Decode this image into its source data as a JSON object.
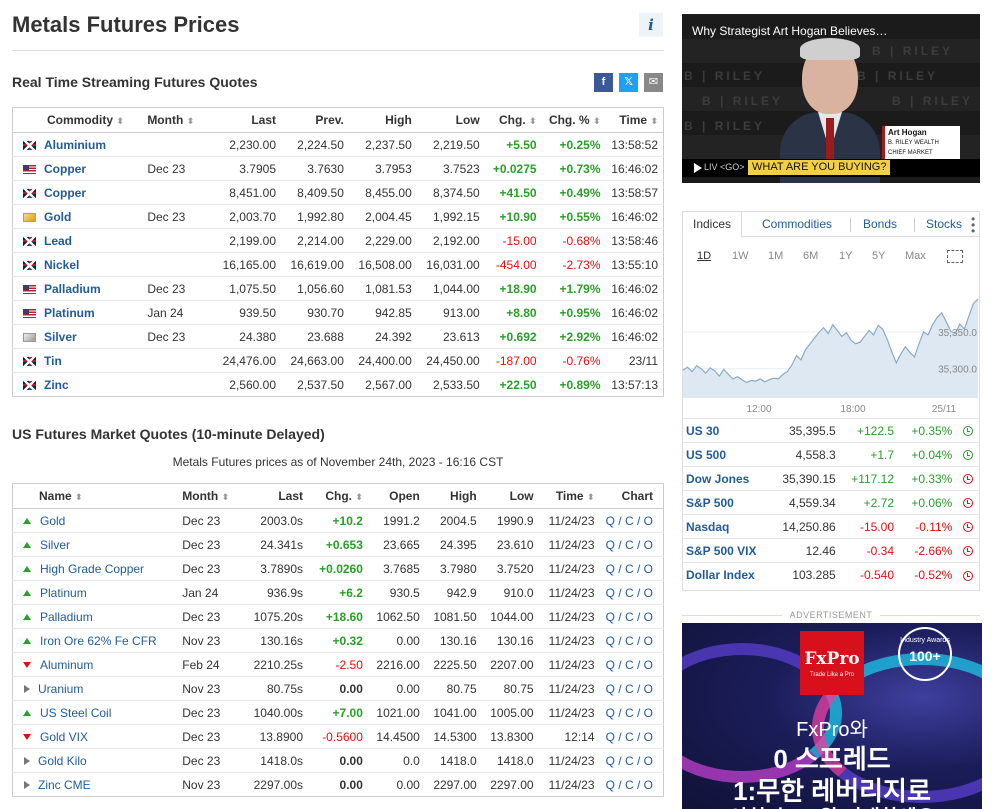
{
  "page": {
    "title": "Metals Futures Prices",
    "info_icon": "info-icon"
  },
  "realtime": {
    "title": "Real Time Streaming Futures Quotes",
    "share": [
      {
        "icon": "facebook-icon",
        "glyph": "f",
        "color": "#3b5998"
      },
      {
        "icon": "twitter-icon",
        "glyph": "𝕏",
        "color": "#1da1f2"
      },
      {
        "icon": "email-icon",
        "glyph": "✉",
        "color": "#888888"
      }
    ],
    "headers": {
      "commodity": "Commodity",
      "month": "Month",
      "last": "Last",
      "prev": "Prev.",
      "high": "High",
      "low": "Low",
      "chg": "Chg.",
      "chg_pct": "Chg. %",
      "time": "Time"
    },
    "sort_glyph": "⬍",
    "rows": [
      {
        "flag": "uk",
        "name": "Aluminium",
        "month": "",
        "last": "2,230.00",
        "prev": "2,224.50",
        "high": "2,237.50",
        "low": "2,219.50",
        "chg": "+5.50",
        "chg_pct": "+0.25%",
        "time": "13:58:52",
        "dir": "pos"
      },
      {
        "flag": "us",
        "name": "Copper",
        "month": "Dec 23",
        "last": "3.7905",
        "prev": "3.7630",
        "high": "3.7953",
        "low": "3.7523",
        "chg": "+0.0275",
        "chg_pct": "+0.73%",
        "time": "16:46:02",
        "dir": "pos"
      },
      {
        "flag": "uk",
        "name": "Copper",
        "month": "",
        "last": "8,451.00",
        "prev": "8,409.50",
        "high": "8,455.00",
        "low": "8,374.50",
        "chg": "+41.50",
        "chg_pct": "+0.49%",
        "time": "13:58:57",
        "dir": "pos"
      },
      {
        "flag": "gold",
        "name": "Gold",
        "month": "Dec 23",
        "last": "2,003.70",
        "prev": "1,992.80",
        "high": "2,004.45",
        "low": "1,992.15",
        "chg": "+10.90",
        "chg_pct": "+0.55%",
        "time": "16:46:02",
        "dir": "pos"
      },
      {
        "flag": "uk",
        "name": "Lead",
        "month": "",
        "last": "2,199.00",
        "prev": "2,214.00",
        "high": "2,229.00",
        "low": "2,192.00",
        "chg": "-15.00",
        "chg_pct": "-0.68%",
        "time": "13:58:46",
        "dir": "neg"
      },
      {
        "flag": "uk",
        "name": "Nickel",
        "month": "",
        "last": "16,165.00",
        "prev": "16,619.00",
        "high": "16,508.00",
        "low": "16,031.00",
        "chg": "-454.00",
        "chg_pct": "-2.73%",
        "time": "13:55:10",
        "dir": "neg"
      },
      {
        "flag": "us",
        "name": "Palladium",
        "month": "Dec 23",
        "last": "1,075.50",
        "prev": "1,056.60",
        "high": "1,081.53",
        "low": "1,044.00",
        "chg": "+18.90",
        "chg_pct": "+1.79%",
        "time": "16:46:02",
        "dir": "pos"
      },
      {
        "flag": "us",
        "name": "Platinum",
        "month": "Jan 24",
        "last": "939.50",
        "prev": "930.70",
        "high": "942.85",
        "low": "913.00",
        "chg": "+8.80",
        "chg_pct": "+0.95%",
        "time": "16:46:02",
        "dir": "pos"
      },
      {
        "flag": "silver",
        "name": "Silver",
        "month": "Dec 23",
        "last": "24.380",
        "prev": "23.688",
        "high": "24.392",
        "low": "23.613",
        "chg": "+0.692",
        "chg_pct": "+2.92%",
        "time": "16:46:02",
        "dir": "pos"
      },
      {
        "flag": "uk",
        "name": "Tin",
        "month": "",
        "last": "24,476.00",
        "prev": "24,663.00",
        "high": "24,400.00",
        "low": "24,450.00",
        "chg": "-187.00",
        "chg_pct": "-0.76%",
        "time": "23/11",
        "dir": "neg"
      },
      {
        "flag": "uk",
        "name": "Zinc",
        "month": "",
        "last": "2,560.00",
        "prev": "2,537.50",
        "high": "2,567.00",
        "low": "2,533.50",
        "chg": "+22.50",
        "chg_pct": "+0.89%",
        "time": "13:57:13",
        "dir": "pos"
      }
    ]
  },
  "delayed": {
    "title": "US Futures Market Quotes (10-minute Delayed)",
    "subtitle": "Metals Futures prices as of November 24th, 2023 - 16:16 CST",
    "headers": {
      "name": "Name",
      "month": "Month",
      "last": "Last",
      "chg": "Chg.",
      "open": "Open",
      "high": "High",
      "low": "Low",
      "time": "Time",
      "chart": "Chart"
    },
    "chart_links": [
      "Q",
      "C",
      "O"
    ],
    "rows": [
      {
        "dir": "up",
        "name": "Gold",
        "month": "Dec 23",
        "last": "2003.0s",
        "chg": "+10.2",
        "open": "1991.2",
        "high": "2004.5",
        "low": "1990.9",
        "time": "11/24/23",
        "cls": "pos"
      },
      {
        "dir": "up",
        "name": "Silver",
        "month": "Dec 23",
        "last": "24.341s",
        "chg": "+0.653",
        "open": "23.665",
        "high": "24.395",
        "low": "23.610",
        "time": "11/24/23",
        "cls": "pos"
      },
      {
        "dir": "up",
        "name": "High Grade Copper",
        "month": "Dec 23",
        "last": "3.7890s",
        "chg": "+0.0260",
        "open": "3.7685",
        "high": "3.7980",
        "low": "3.7520",
        "time": "11/24/23",
        "cls": "pos"
      },
      {
        "dir": "up",
        "name": "Platinum",
        "month": "Jan 24",
        "last": "936.9s",
        "chg": "+6.2",
        "open": "930.5",
        "high": "942.9",
        "low": "910.0",
        "time": "11/24/23",
        "cls": "pos"
      },
      {
        "dir": "up",
        "name": "Palladium",
        "month": "Dec 23",
        "last": "1075.20s",
        "chg": "+18.60",
        "open": "1062.50",
        "high": "1081.50",
        "low": "1044.00",
        "time": "11/24/23",
        "cls": "pos"
      },
      {
        "dir": "up",
        "name": "Iron Ore 62% Fe CFR",
        "month": "Nov 23",
        "last": "130.16s",
        "chg": "+0.32",
        "open": "0.00",
        "high": "130.16",
        "low": "130.16",
        "time": "11/24/23",
        "cls": "pos"
      },
      {
        "dir": "down",
        "name": "Aluminum",
        "month": "Feb 24",
        "last": "2210.25s",
        "chg": "-2.50",
        "open": "2216.00",
        "high": "2225.50",
        "low": "2207.00",
        "time": "11/24/23",
        "cls": "neg"
      },
      {
        "dir": "flat",
        "name": "Uranium",
        "month": "Nov 23",
        "last": "80.75s",
        "chg": "0.00",
        "open": "0.00",
        "high": "80.75",
        "low": "80.75",
        "time": "11/24/23",
        "cls": "neu"
      },
      {
        "dir": "up",
        "name": "US Steel Coil",
        "month": "Dec 23",
        "last": "1040.00s",
        "chg": "+7.00",
        "open": "1021.00",
        "high": "1041.00",
        "low": "1005.00",
        "time": "11/24/23",
        "cls": "pos"
      },
      {
        "dir": "down",
        "name": "Gold VIX",
        "month": "Dec 23",
        "last": "13.8900",
        "chg": "-0.5600",
        "open": "14.4500",
        "high": "14.5300",
        "low": "13.8300",
        "time": "12:14",
        "cls": "neg"
      },
      {
        "dir": "flat",
        "name": "Gold Kilo",
        "month": "Dec 23",
        "last": "1418.0s",
        "chg": "0.00",
        "open": "0.0",
        "high": "1418.0",
        "low": "1418.0",
        "time": "11/24/23",
        "cls": "neu"
      },
      {
        "dir": "flat",
        "name": "Zinc CME",
        "month": "Nov 23",
        "last": "2297.00s",
        "chg": "0.00",
        "open": "0.00",
        "high": "2297.00",
        "low": "2297.00",
        "time": "11/24/23",
        "cls": "neu"
      }
    ]
  },
  "video": {
    "title": "Why Strategist Art Hogan Believes…",
    "watermark": "B | RILEY",
    "lower_name": "Art Hogan",
    "lower_role": "B. RILEY WEALTH CHIEF MARKET STRATEGIST",
    "live_tag": "LIV <GO>",
    "ticker": "WHAT ARE YOU BUYING?"
  },
  "indices": {
    "tabs": [
      "Indices",
      "Commodities",
      "Bonds",
      "Stocks"
    ],
    "ranges": [
      "1D",
      "1W",
      "1M",
      "6M",
      "1Y",
      "5Y",
      "Max"
    ],
    "active_range": "1D",
    "chart_data": {
      "type": "area",
      "x_labels": [
        "12:00",
        "18:00",
        "25/11"
      ],
      "y_labels": [
        "35,350.0",
        "35,300.0"
      ],
      "values": [
        35298,
        35302,
        35296,
        35304,
        35300,
        35294,
        35301,
        35297,
        35290,
        35299,
        35292,
        35286,
        35289,
        35285,
        35281,
        35284,
        35283,
        35286,
        35282,
        35285,
        35287,
        35286,
        35292,
        35296,
        35305,
        35318,
        35312,
        35326,
        35334,
        35342,
        35350,
        35356,
        35348,
        35360,
        35352,
        35344,
        35349,
        35339,
        35334,
        35336,
        35344,
        35352,
        35346,
        35359,
        35354,
        35340,
        35323,
        35308,
        35320,
        35330,
        35322,
        35316,
        35334,
        35350,
        35346,
        35360,
        35370,
        35376,
        35364,
        35351,
        35348,
        35361,
        35354,
        35372,
        35389,
        35395
      ]
    },
    "rows": [
      {
        "name": "US 30",
        "last": "35,395.5",
        "chg": "+122.5",
        "pct": "+0.35%",
        "cls": "pos",
        "clock": "green"
      },
      {
        "name": "US 500",
        "last": "4,558.3",
        "chg": "+1.7",
        "pct": "+0.04%",
        "cls": "pos",
        "clock": "green"
      },
      {
        "name": "Dow Jones",
        "last": "35,390.15",
        "chg": "+117.12",
        "pct": "+0.33%",
        "cls": "pos",
        "clock": "red"
      },
      {
        "name": "S&P 500",
        "last": "4,559.34",
        "chg": "+2.72",
        "pct": "+0.06%",
        "cls": "pos",
        "clock": "red"
      },
      {
        "name": "Nasdaq",
        "last": "14,250.86",
        "chg": "-15.00",
        "pct": "-0.11%",
        "cls": "neg",
        "clock": "red"
      },
      {
        "name": "S&P 500 VIX",
        "last": "12.46",
        "chg": "-0.34",
        "pct": "-2.66%",
        "cls": "neg",
        "clock": "red"
      },
      {
        "name": "Dollar Index",
        "last": "103.285",
        "chg": "-0.540",
        "pct": "-0.52%",
        "cls": "neg",
        "clock": "red"
      }
    ]
  },
  "ad": {
    "label": "ADVERTISEMENT",
    "logo": "FxPro",
    "logo_sub": "Trade Like a Pro",
    "award_top": "Industry Awards",
    "award_num": "100+",
    "line1": "FxPro와",
    "line2": "0 스프레드",
    "line3": "1:무한 레버리지로",
    "line4": "이치 호 그 위 거래하세요"
  },
  "colors": {
    "positive": "#2a9d2a",
    "negative": "#dd1111",
    "link": "#1f5c99"
  }
}
